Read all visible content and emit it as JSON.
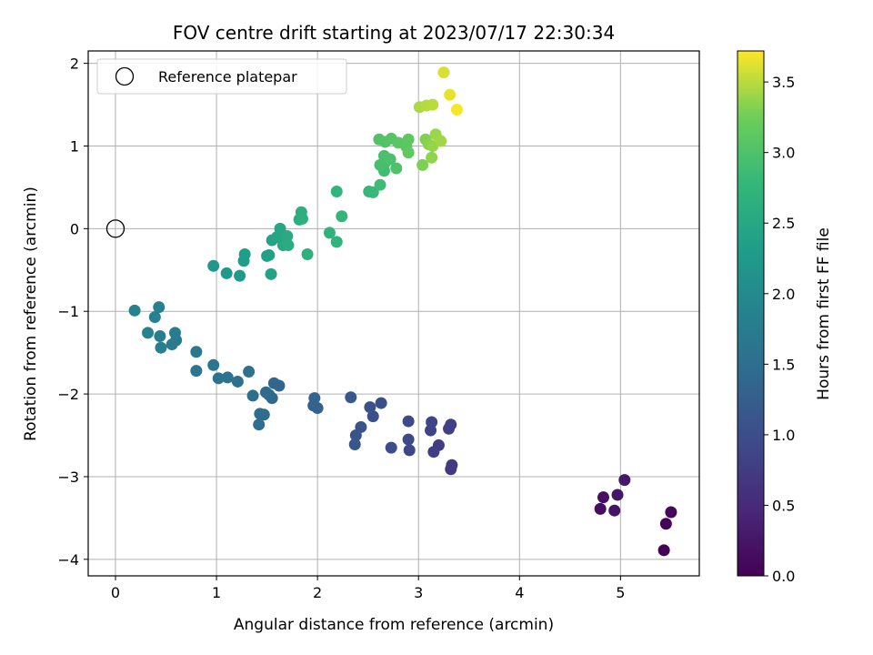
{
  "chart_data": {
    "type": "scatter",
    "title": "FOV centre drift starting at 2023/07/17 22:30:34",
    "xlabel": "Angular distance from reference (arcmin)",
    "ylabel": "Rotation from reference (arcmin)",
    "xlim": [
      -0.27,
      5.78
    ],
    "ylim": [
      -4.2,
      2.15
    ],
    "xticks": [
      0,
      1,
      2,
      3,
      4,
      5
    ],
    "yticks": [
      -4,
      -3,
      -2,
      -1,
      0,
      1,
      2
    ],
    "grid": true,
    "legend": {
      "position": "top-left",
      "label": "Reference platepar"
    },
    "reference_point": {
      "x": 0,
      "y": 0
    },
    "colorbar": {
      "label": "Hours from first FF file",
      "range": [
        0,
        3.72
      ],
      "ticks": [
        "0.0",
        "0.5",
        "1.0",
        "1.5",
        "2.0",
        "2.5",
        "3.0",
        "3.5"
      ],
      "colormap": "viridis"
    },
    "points": [
      {
        "x": 5.43,
        "y": -3.89,
        "h": 0.02
      },
      {
        "x": 5.45,
        "y": -3.57,
        "h": 0.05
      },
      {
        "x": 5.5,
        "y": -3.43,
        "h": 0.08
      },
      {
        "x": 4.8,
        "y": -3.39,
        "h": 0.15
      },
      {
        "x": 4.83,
        "y": -3.25,
        "h": 0.18
      },
      {
        "x": 4.94,
        "y": -3.41,
        "h": 0.22
      },
      {
        "x": 4.97,
        "y": -3.22,
        "h": 0.25
      },
      {
        "x": 5.04,
        "y": -3.04,
        "h": 0.28
      },
      {
        "x": 3.32,
        "y": -2.91,
        "h": 0.7
      },
      {
        "x": 3.33,
        "y": -2.86,
        "h": 0.72
      },
      {
        "x": 3.2,
        "y": -2.62,
        "h": 0.75
      },
      {
        "x": 3.15,
        "y": -2.7,
        "h": 0.78
      },
      {
        "x": 3.3,
        "y": -2.42,
        "h": 0.8
      },
      {
        "x": 3.32,
        "y": -2.37,
        "h": 0.82
      },
      {
        "x": 3.12,
        "y": -2.44,
        "h": 0.85
      },
      {
        "x": 3.13,
        "y": -2.34,
        "h": 0.88
      },
      {
        "x": 2.91,
        "y": -2.68,
        "h": 0.9
      },
      {
        "x": 2.9,
        "y": -2.55,
        "h": 0.93
      },
      {
        "x": 2.9,
        "y": -2.33,
        "h": 0.95
      },
      {
        "x": 2.73,
        "y": -2.65,
        "h": 0.98
      },
      {
        "x": 2.63,
        "y": -2.11,
        "h": 1.0
      },
      {
        "x": 2.55,
        "y": -2.27,
        "h": 1.02
      },
      {
        "x": 2.52,
        "y": -2.16,
        "h": 1.05
      },
      {
        "x": 2.43,
        "y": -2.4,
        "h": 1.08
      },
      {
        "x": 2.38,
        "y": -2.5,
        "h": 1.1
      },
      {
        "x": 2.37,
        "y": -2.61,
        "h": 1.12
      },
      {
        "x": 2.33,
        "y": -2.04,
        "h": 1.15
      },
      {
        "x": 2.0,
        "y": -2.17,
        "h": 1.3
      },
      {
        "x": 1.96,
        "y": -2.14,
        "h": 1.32
      },
      {
        "x": 1.97,
        "y": -2.05,
        "h": 1.34
      },
      {
        "x": 1.62,
        "y": -1.9,
        "h": 1.36
      },
      {
        "x": 1.57,
        "y": -1.87,
        "h": 1.38
      },
      {
        "x": 1.55,
        "y": -2.05,
        "h": 1.4
      },
      {
        "x": 1.52,
        "y": -2.01,
        "h": 1.42
      },
      {
        "x": 1.49,
        "y": -1.98,
        "h": 1.44
      },
      {
        "x": 1.47,
        "y": -2.25,
        "h": 1.46
      },
      {
        "x": 1.43,
        "y": -2.24,
        "h": 1.48
      },
      {
        "x": 1.42,
        "y": -2.37,
        "h": 1.5
      },
      {
        "x": 1.36,
        "y": -2.02,
        "h": 1.52
      },
      {
        "x": 1.32,
        "y": -1.73,
        "h": 1.54
      },
      {
        "x": 1.21,
        "y": -1.85,
        "h": 1.56
      },
      {
        "x": 1.11,
        "y": -1.8,
        "h": 1.58
      },
      {
        "x": 1.02,
        "y": -1.81,
        "h": 1.6
      },
      {
        "x": 0.97,
        "y": -1.65,
        "h": 1.62
      },
      {
        "x": 0.8,
        "y": -1.72,
        "h": 1.64
      },
      {
        "x": 0.8,
        "y": -1.49,
        "h": 1.66
      },
      {
        "x": 0.6,
        "y": -1.35,
        "h": 1.72
      },
      {
        "x": 0.59,
        "y": -1.26,
        "h": 1.74
      },
      {
        "x": 0.56,
        "y": -1.4,
        "h": 1.76
      },
      {
        "x": 0.45,
        "y": -1.44,
        "h": 1.78
      },
      {
        "x": 0.44,
        "y": -1.3,
        "h": 1.8
      },
      {
        "x": 0.43,
        "y": -0.95,
        "h": 1.82
      },
      {
        "x": 0.39,
        "y": -1.07,
        "h": 1.84
      },
      {
        "x": 0.32,
        "y": -1.26,
        "h": 1.86
      },
      {
        "x": 0.19,
        "y": -0.99,
        "h": 1.88
      },
      {
        "x": 0.97,
        "y": -0.45,
        "h": 2.2
      },
      {
        "x": 1.1,
        "y": -0.54,
        "h": 2.23
      },
      {
        "x": 1.23,
        "y": -0.57,
        "h": 2.26
      },
      {
        "x": 1.27,
        "y": -0.39,
        "h": 2.29
      },
      {
        "x": 1.28,
        "y": -0.31,
        "h": 2.32
      },
      {
        "x": 1.5,
        "y": -0.33,
        "h": 2.35
      },
      {
        "x": 1.52,
        "y": -0.32,
        "h": 2.38
      },
      {
        "x": 1.54,
        "y": -0.55,
        "h": 2.41
      },
      {
        "x": 1.55,
        "y": -0.14,
        "h": 2.44
      },
      {
        "x": 1.6,
        "y": -0.1,
        "h": 2.46
      },
      {
        "x": 1.63,
        "y": 0.0,
        "h": 2.48
      },
      {
        "x": 1.66,
        "y": -0.2,
        "h": 2.5
      },
      {
        "x": 1.67,
        "y": -0.16,
        "h": 2.52
      },
      {
        "x": 1.7,
        "y": -0.09,
        "h": 2.54
      },
      {
        "x": 1.71,
        "y": -0.2,
        "h": 2.56
      },
      {
        "x": 1.82,
        "y": 0.11,
        "h": 2.6
      },
      {
        "x": 1.84,
        "y": 0.2,
        "h": 2.62
      },
      {
        "x": 1.85,
        "y": 0.12,
        "h": 2.64
      },
      {
        "x": 1.9,
        "y": -0.31,
        "h": 2.66
      },
      {
        "x": 2.12,
        "y": -0.05,
        "h": 2.7
      },
      {
        "x": 2.19,
        "y": -0.16,
        "h": 2.72
      },
      {
        "x": 2.19,
        "y": 0.45,
        "h": 2.74
      },
      {
        "x": 2.24,
        "y": 0.15,
        "h": 2.76
      },
      {
        "x": 2.51,
        "y": 0.45,
        "h": 2.8
      },
      {
        "x": 2.55,
        "y": 0.44,
        "h": 2.82
      },
      {
        "x": 2.62,
        "y": 0.53,
        "h": 2.88
      },
      {
        "x": 2.66,
        "y": 0.7,
        "h": 2.9
      },
      {
        "x": 2.67,
        "y": 0.8,
        "h": 2.92
      },
      {
        "x": 2.62,
        "y": 0.77,
        "h": 2.94
      },
      {
        "x": 2.66,
        "y": 0.88,
        "h": 2.96
      },
      {
        "x": 2.72,
        "y": 0.84,
        "h": 2.98
      },
      {
        "x": 2.78,
        "y": 0.73,
        "h": 3.0
      },
      {
        "x": 2.61,
        "y": 1.08,
        "h": 3.02
      },
      {
        "x": 2.67,
        "y": 1.05,
        "h": 3.04
      },
      {
        "x": 2.73,
        "y": 1.09,
        "h": 3.06
      },
      {
        "x": 2.8,
        "y": 1.04,
        "h": 3.08
      },
      {
        "x": 2.88,
        "y": 0.99,
        "h": 3.1
      },
      {
        "x": 2.9,
        "y": 1.08,
        "h": 3.12
      },
      {
        "x": 2.9,
        "y": 0.92,
        "h": 3.14
      },
      {
        "x": 3.04,
        "y": 0.77,
        "h": 3.3
      },
      {
        "x": 3.07,
        "y": 1.08,
        "h": 3.32
      },
      {
        "x": 3.1,
        "y": 1.02,
        "h": 3.34
      },
      {
        "x": 3.13,
        "y": 0.86,
        "h": 3.36
      },
      {
        "x": 3.14,
        "y": 1.0,
        "h": 3.38
      },
      {
        "x": 3.17,
        "y": 1.14,
        "h": 3.4
      },
      {
        "x": 3.22,
        "y": 1.06,
        "h": 3.42
      },
      {
        "x": 3.01,
        "y": 1.47,
        "h": 3.46
      },
      {
        "x": 3.08,
        "y": 1.49,
        "h": 3.48
      },
      {
        "x": 3.14,
        "y": 1.5,
        "h": 3.5
      },
      {
        "x": 3.25,
        "y": 1.89,
        "h": 3.6
      },
      {
        "x": 3.31,
        "y": 1.62,
        "h": 3.65
      },
      {
        "x": 3.38,
        "y": 1.44,
        "h": 3.7
      }
    ]
  }
}
